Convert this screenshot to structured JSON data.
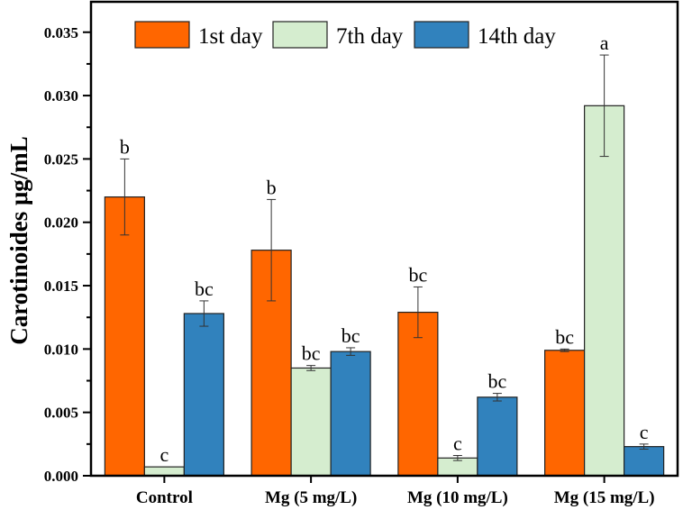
{
  "chart_data": {
    "type": "bar",
    "title": "",
    "xlabel": "",
    "ylabel": "Carotinoides μg/mL",
    "ylim": [
      0,
      0.0374
    ],
    "yticks": [
      "0.000",
      "0.005",
      "0.010",
      "0.015",
      "0.020",
      "0.025",
      "0.030",
      "0.035"
    ],
    "categories": [
      "Control",
      "Mg (5 mg/L)",
      "Mg (10 mg/L)",
      "Mg (15 mg/L)"
    ],
    "legend_position": "top",
    "grid": false,
    "series": [
      {
        "name": "1st day",
        "color": "#FF6600",
        "values": [
          0.022,
          0.0178,
          0.0129,
          0.0099
        ],
        "errors": [
          0.003,
          0.004,
          0.002,
          0.0001
        ],
        "labels": [
          "b",
          "b",
          "bc",
          "bc"
        ]
      },
      {
        "name": "7th day",
        "color": "#D5EDCF",
        "values": [
          0.0007,
          0.0085,
          0.0014,
          0.0292
        ],
        "errors": [
          0.0,
          0.0002,
          0.0002,
          0.004
        ],
        "labels": [
          "c",
          "bc",
          "c",
          "a"
        ]
      },
      {
        "name": "14th day",
        "color": "#3182BD",
        "values": [
          0.0128,
          0.0098,
          0.0062,
          0.0023
        ],
        "errors": [
          0.001,
          0.0003,
          0.0003,
          0.0002
        ],
        "labels": [
          "bc",
          "bc",
          "bc",
          "c"
        ]
      }
    ]
  }
}
